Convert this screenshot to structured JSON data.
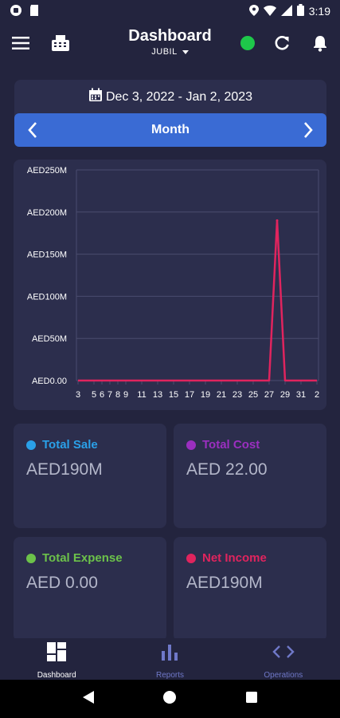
{
  "status_bar": {
    "time": "3:19"
  },
  "header": {
    "title": "Dashboard",
    "subtitle": "JUBIL"
  },
  "date_range": {
    "label": "Dec 3, 2022 - Jan 2, 2023"
  },
  "period": {
    "label": "Month"
  },
  "colors": {
    "background": "#23243e",
    "card": "#2c2e4d",
    "accent_blue": "#3a6bd4",
    "status_green": "#1ec74a",
    "total_sale": "#2aa0e8",
    "total_cost": "#9b2fc0",
    "total_expense": "#6cc24a",
    "net_income": "#e0245e",
    "chart_line": "#e0245e"
  },
  "chart_data": {
    "type": "line",
    "title": "",
    "xlabel": "",
    "ylabel": "",
    "x_tick_labels": [
      "3",
      "5",
      "6",
      "7",
      "8",
      "9",
      "11",
      "13",
      "15",
      "17",
      "19",
      "21",
      "23",
      "25",
      "27",
      "29",
      "31",
      "2"
    ],
    "y_tick_labels": [
      "AED250M",
      "AED200M",
      "AED150M",
      "AED100M",
      "AED50M",
      "AED0.00"
    ],
    "ylim": [
      0,
      250
    ],
    "y_unit": "AED millions",
    "grid": true,
    "series": [
      {
        "x": [
          "3",
          "5",
          "6",
          "7",
          "8",
          "9",
          "11",
          "13",
          "15",
          "17",
          "19",
          "21",
          "23",
          "25",
          "26",
          "27",
          "28",
          "29",
          "31",
          "2"
        ],
        "values": [
          0,
          0,
          0,
          0,
          0,
          0,
          0,
          0,
          0,
          0,
          0,
          0,
          0,
          0,
          0,
          0,
          190,
          0,
          0,
          0
        ]
      }
    ]
  },
  "stats": [
    {
      "label": "Total Sale",
      "value": "AED190M"
    },
    {
      "label": "Total Cost",
      "value": "AED 22.00"
    },
    {
      "label": "Total Expense",
      "value": "AED 0.00"
    },
    {
      "label": "Net Income",
      "value": "AED190M"
    }
  ],
  "bottom_nav": [
    {
      "label": "Dashboard",
      "icon": "dashboard-icon",
      "active": true
    },
    {
      "label": "Reports",
      "icon": "bar-chart-icon",
      "active": false
    },
    {
      "label": "Operations",
      "icon": "code-icon",
      "active": false
    }
  ]
}
